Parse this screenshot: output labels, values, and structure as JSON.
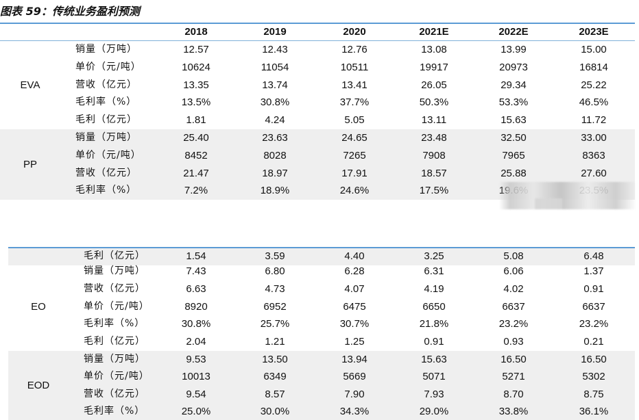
{
  "title": "图表 59：传统业务盈利预测",
  "columns": [
    "2018",
    "2019",
    "2020",
    "2021E",
    "2022E",
    "2023E"
  ],
  "sections": [
    {
      "label": "EVA",
      "shaded": false,
      "rows": [
        {
          "metric": "销量（万吨）",
          "values": [
            "12.57",
            "12.43",
            "12.76",
            "13.08",
            "13.99",
            "15.00"
          ]
        },
        {
          "metric": "单价（元/吨）",
          "values": [
            "10624",
            "11054",
            "10511",
            "19917",
            "20973",
            "16814"
          ]
        },
        {
          "metric": "营收（亿元）",
          "values": [
            "13.35",
            "13.74",
            "13.41",
            "26.05",
            "29.34",
            "25.22"
          ]
        },
        {
          "metric": "毛利率（%）",
          "values": [
            "13.5%",
            "30.8%",
            "37.7%",
            "50.3%",
            "53.3%",
            "46.5%"
          ]
        },
        {
          "metric": "毛利（亿元）",
          "values": [
            "1.81",
            "4.24",
            "5.05",
            "13.11",
            "15.63",
            "11.72"
          ]
        }
      ]
    },
    {
      "label": "PP",
      "shaded": true,
      "rows": [
        {
          "metric": "销量（万吨）",
          "values": [
            "25.40",
            "23.63",
            "24.65",
            "23.48",
            "32.50",
            "33.00"
          ]
        },
        {
          "metric": "单价（元/吨）",
          "values": [
            "8452",
            "8028",
            "7265",
            "7908",
            "7965",
            "8363"
          ]
        },
        {
          "metric": "营收（亿元）",
          "values": [
            "21.47",
            "18.97",
            "17.91",
            "18.57",
            "25.88",
            "27.60"
          ]
        },
        {
          "metric": "毛利率（%）",
          "values": [
            "7.2%",
            "18.9%",
            "24.6%",
            "17.5%",
            "19.6%",
            "23.5%"
          ]
        }
      ]
    },
    {
      "label": "",
      "shaded": true,
      "rows": [
        {
          "metric": "毛利（亿元）",
          "values": [
            "1.54",
            "3.59",
            "4.40",
            "3.25",
            "5.08",
            "6.48"
          ]
        }
      ]
    },
    {
      "label": "EO",
      "shaded": false,
      "rows": [
        {
          "metric": "销量（万吨）",
          "values": [
            "7.43",
            "6.80",
            "6.28",
            "6.31",
            "6.06",
            "1.37"
          ]
        },
        {
          "metric": "营收（亿元）",
          "values": [
            "6.63",
            "4.73",
            "4.07",
            "4.19",
            "4.02",
            "0.91"
          ]
        },
        {
          "metric": "单价（元/吨）",
          "values": [
            "8920",
            "6952",
            "6475",
            "6650",
            "6637",
            "6637"
          ]
        },
        {
          "metric": "毛利率（%）",
          "values": [
            "30.8%",
            "25.7%",
            "30.7%",
            "21.8%",
            "23.2%",
            "23.2%"
          ]
        },
        {
          "metric": "毛利（亿元）",
          "values": [
            "2.04",
            "1.21",
            "1.25",
            "0.91",
            "0.93",
            "0.21"
          ]
        }
      ]
    },
    {
      "label": "EOD",
      "shaded": true,
      "rows": [
        {
          "metric": "销量（万吨）",
          "values": [
            "9.53",
            "13.50",
            "13.94",
            "15.63",
            "16.50",
            "16.50"
          ]
        },
        {
          "metric": "单价（元/吨）",
          "values": [
            "10013",
            "6349",
            "5669",
            "5071",
            "5271",
            "5302"
          ]
        },
        {
          "metric": "营收（亿元）",
          "values": [
            "9.54",
            "8.57",
            "7.90",
            "7.93",
            "8.70",
            "8.75"
          ]
        },
        {
          "metric": "毛利率（%）",
          "values": [
            "25.0%",
            "30.0%",
            "34.3%",
            "29.0%",
            "33.8%",
            "36.1%"
          ]
        }
      ]
    }
  ]
}
